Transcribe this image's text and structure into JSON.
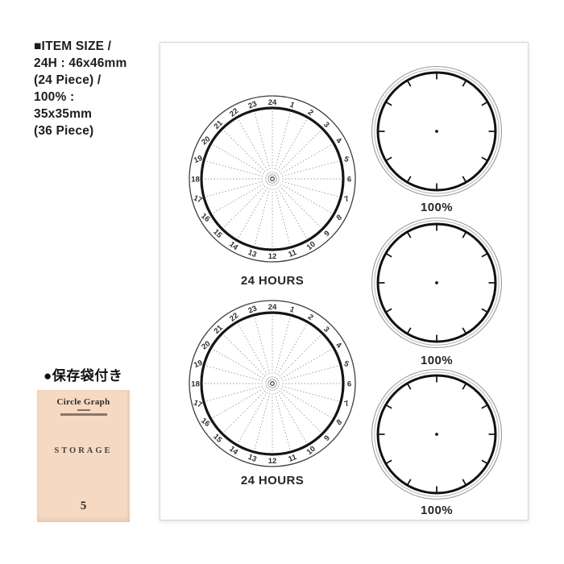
{
  "info_block": {
    "lines": [
      "■ITEM SIZE /",
      "24H : 46x46mm",
      "(24 Piece) /",
      "100% :",
      "35x35mm",
      "(36 Piece)"
    ]
  },
  "sheet": {
    "dial_24h": {
      "label": "24 HOURS",
      "hour_numbers": [
        1,
        2,
        3,
        4,
        5,
        6,
        7,
        8,
        9,
        10,
        11,
        12,
        13,
        14,
        15,
        16,
        17,
        18,
        19,
        20,
        21,
        22,
        23,
        24
      ],
      "division_count": 24,
      "ring_color": "#151515",
      "dotted_line_color": "#8e8e8e"
    },
    "percent_dial": {
      "label": "100%",
      "tick_count": 12,
      "ring_color": "#101010",
      "outer_ring_color": "#9a9a9a"
    }
  },
  "storage": {
    "note": "●保存袋付き",
    "envelope": {
      "title": "Circle Graph",
      "storage_label": "STORAGE",
      "number": "5",
      "bg_color": "#f6d9c2"
    }
  }
}
